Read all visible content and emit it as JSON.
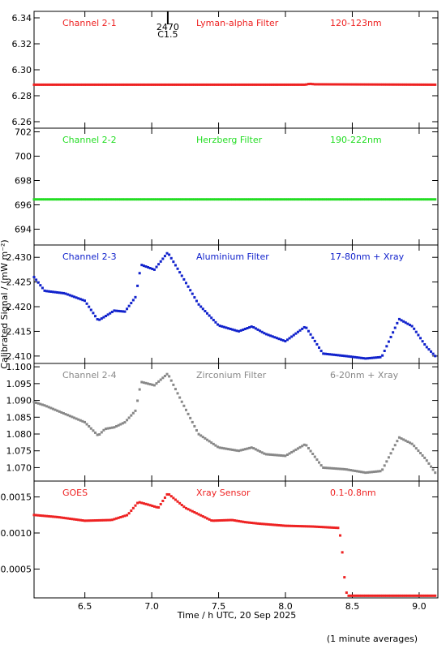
{
  "chart_data": [
    {
      "type": "scatter",
      "channel_label": "Channel 2-1",
      "filter_label": "Lyman-alpha Filter",
      "band_label": "120-123nm",
      "color": "#ee2222",
      "ylim": [
        6.255,
        6.345
      ],
      "yticks": [
        6.26,
        6.28,
        6.3,
        6.32,
        6.34
      ],
      "ytick_labels": [
        "6.26",
        "6.28",
        "6.30",
        "6.32",
        "6.34"
      ],
      "flare_marker": {
        "x": 7.12,
        "labels": [
          "2470",
          "C1.5"
        ]
      },
      "series": [
        {
          "x": [
            6.12,
            8.15,
            8.18,
            8.22,
            9.12
          ],
          "y": [
            6.2885,
            6.2885,
            6.2892,
            6.2888,
            6.2885
          ]
        }
      ]
    },
    {
      "type": "scatter",
      "channel_label": "Channel 2-2",
      "filter_label": "Herzberg Filter",
      "band_label": "190-222nm",
      "color": "#22dd22",
      "ylim": [
        692.7,
        702.3
      ],
      "yticks": [
        694,
        696,
        698,
        700,
        702
      ],
      "ytick_labels": [
        "694",
        "696",
        "698",
        "700",
        "702"
      ],
      "series": [
        {
          "x": [
            6.12,
            7.0,
            8.0,
            9.12
          ],
          "y": [
            696.45,
            696.45,
            696.45,
            696.45
          ]
        }
      ]
    },
    {
      "type": "scatter",
      "channel_label": "Channel 2-3",
      "filter_label": "Aluminium Filter",
      "band_label": "17-80nm + Xray",
      "color": "#1122cc",
      "ylim": [
        2.4085,
        2.4325
      ],
      "yticks": [
        2.41,
        2.415,
        2.42,
        2.425,
        2.43
      ],
      "ytick_labels": [
        "2.410",
        "2.415",
        "2.420",
        "2.425",
        "2.430"
      ],
      "series": [
        {
          "x": [
            6.12,
            6.2,
            6.35,
            6.5,
            6.6,
            6.65,
            6.72,
            6.8,
            6.88,
            6.92,
            7.02,
            7.12,
            7.22,
            7.35,
            7.5,
            7.65,
            7.75,
            7.85,
            8.0,
            8.15,
            8.28,
            8.45,
            8.6,
            8.72,
            8.85,
            8.95,
            9.05,
            9.12
          ],
          "y": [
            2.426,
            2.4232,
            2.4227,
            2.4212,
            2.4172,
            2.418,
            2.4192,
            2.419,
            2.422,
            2.4285,
            2.4275,
            2.431,
            2.4265,
            2.4205,
            2.4162,
            2.415,
            2.416,
            2.4145,
            2.413,
            2.416,
            2.4105,
            2.41,
            2.4095,
            2.4098,
            2.4175,
            2.416,
            2.412,
            2.41
          ]
        }
      ]
    },
    {
      "type": "scatter",
      "channel_label": "Channel 2-4",
      "filter_label": "Zirconium Filter",
      "band_label": "6-20nm + Xray",
      "color": "#888888",
      "ylim": [
        1.066,
        1.101
      ],
      "yticks": [
        1.07,
        1.075,
        1.08,
        1.085,
        1.09,
        1.095,
        1.1
      ],
      "ytick_labels": [
        "1.070",
        "1.075",
        "1.080",
        "1.085",
        "1.090",
        "1.095",
        "1.100"
      ],
      "series": [
        {
          "x": [
            6.12,
            6.2,
            6.35,
            6.5,
            6.6,
            6.65,
            6.72,
            6.8,
            6.88,
            6.92,
            7.02,
            7.12,
            7.22,
            7.35,
            7.5,
            7.65,
            7.75,
            7.85,
            8.0,
            8.15,
            8.28,
            8.45,
            8.6,
            8.72,
            8.85,
            8.95,
            9.05,
            9.12
          ],
          "y": [
            1.0895,
            1.0885,
            1.086,
            1.0835,
            1.0795,
            1.0815,
            1.082,
            1.0835,
            1.087,
            1.0955,
            1.0945,
            1.098,
            1.09,
            1.08,
            1.076,
            1.075,
            1.076,
            1.074,
            1.0735,
            1.077,
            1.07,
            1.0695,
            1.0685,
            1.069,
            1.079,
            1.077,
            1.0725,
            1.0685
          ]
        }
      ]
    },
    {
      "type": "scatter",
      "channel_label": "GOES",
      "filter_label": "Xray Sensor",
      "band_label": "0.1-0.8nm",
      "color": "#ee2222",
      "ylim": [
        0.0001,
        0.00172
      ],
      "yticks": [
        0.0005,
        0.001,
        0.0015
      ],
      "ytick_labels": [
        "0.0005",
        "0.0010",
        "0.0015"
      ],
      "series": [
        {
          "x": [
            6.12,
            6.3,
            6.5,
            6.7,
            6.82,
            6.9,
            6.98,
            7.05,
            7.12,
            7.25,
            7.45,
            7.6,
            7.7,
            7.8,
            8.0,
            8.2,
            8.4,
            8.42,
            8.44,
            8.46,
            8.6,
            8.8,
            9.0,
            9.12
          ],
          "y": [
            0.00125,
            0.00122,
            0.00117,
            0.00118,
            0.00125,
            0.00143,
            0.00139,
            0.00135,
            0.00155,
            0.00135,
            0.00117,
            0.00118,
            0.00115,
            0.00113,
            0.0011,
            0.00109,
            0.00107,
            0.00085,
            0.0004,
            0.00013,
            0.00013,
            0.00013,
            0.00013,
            0.00013
          ]
        }
      ]
    }
  ],
  "shared_x": {
    "xlim": [
      6.12,
      9.14
    ],
    "xticks": [
      6.5,
      7.0,
      7.5,
      8.0,
      8.5,
      9.0
    ],
    "xtick_labels": [
      "6.5",
      "7.0",
      "7.5",
      "8.0",
      "8.5",
      "9.0"
    ],
    "xlabel": "Time / h UTC, 20 Sep 2025"
  },
  "ylabel": "Calibrated Signal / (mW m⁻²)",
  "footnote": "(1 minute averages)"
}
